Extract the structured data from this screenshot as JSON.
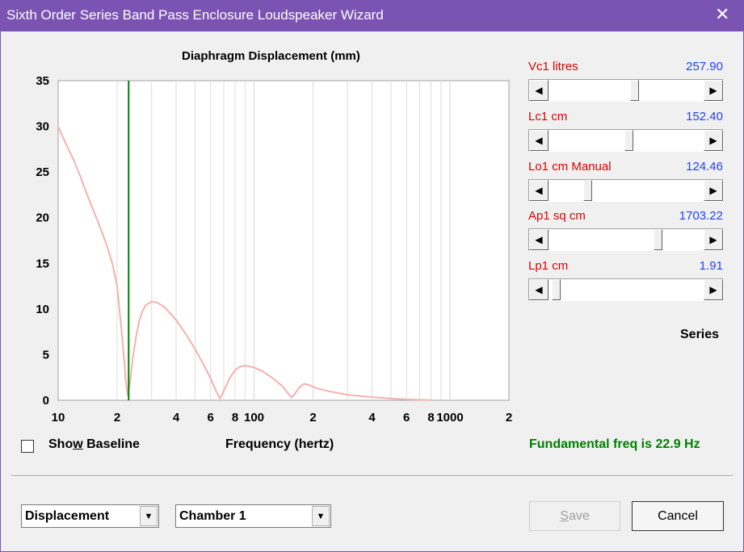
{
  "window": {
    "title": "Sixth Order Series Band Pass Enclosure Loudspeaker Wizard",
    "close_glyph": "✕"
  },
  "chart_data": {
    "type": "line",
    "title": "Diaphragm Displacement (mm)",
    "xlabel": "Frequency (hertz)",
    "ylabel": "",
    "x_scale": "log",
    "xlim": [
      10,
      2000
    ],
    "ylim": [
      0,
      35
    ],
    "y_ticks": [
      "0",
      "5",
      "10",
      "15",
      "20",
      "25",
      "30",
      "35"
    ],
    "x_tick_labels": [
      {
        "value": 10,
        "label": "10"
      },
      {
        "value": 20,
        "label": "2"
      },
      {
        "value": 40,
        "label": "4"
      },
      {
        "value": 60,
        "label": "6"
      },
      {
        "value": 80,
        "label": "8"
      },
      {
        "value": 100,
        "label": "100"
      },
      {
        "value": 200,
        "label": "2"
      },
      {
        "value": 400,
        "label": "4"
      },
      {
        "value": 600,
        "label": "6"
      },
      {
        "value": 800,
        "label": "8"
      },
      {
        "value": 1000,
        "label": "1000"
      },
      {
        "value": 2000,
        "label": "2"
      }
    ],
    "grid": true,
    "marker_line": {
      "x": 22.9,
      "color": "#008000"
    },
    "series": [
      {
        "color": "#f7b0b0",
        "points": [
          [
            10,
            30.0
          ],
          [
            11,
            28.0
          ],
          [
            12,
            26.3
          ],
          [
            13,
            24.5
          ],
          [
            14,
            22.6
          ],
          [
            15,
            21.0
          ],
          [
            16,
            19.5
          ],
          [
            17,
            18.0
          ],
          [
            18,
            16.5
          ],
          [
            19,
            14.8
          ],
          [
            20,
            12.5
          ],
          [
            21,
            8.0
          ],
          [
            21.8,
            4.0
          ],
          [
            22.2,
            1.8
          ],
          [
            22.7,
            0.5
          ],
          [
            23.3,
            2.0
          ],
          [
            24,
            4.5
          ],
          [
            25,
            7.0
          ],
          [
            26,
            8.8
          ],
          [
            27,
            9.8
          ],
          [
            28,
            10.4
          ],
          [
            30,
            10.8
          ],
          [
            32,
            10.7
          ],
          [
            35,
            10.2
          ],
          [
            40,
            8.8
          ],
          [
            45,
            7.2
          ],
          [
            50,
            5.6
          ],
          [
            55,
            4.0
          ],
          [
            60,
            2.4
          ],
          [
            64,
            1.0
          ],
          [
            67,
            0.2
          ],
          [
            70,
            1.0
          ],
          [
            75,
            2.4
          ],
          [
            80,
            3.3
          ],
          [
            85,
            3.7
          ],
          [
            90,
            3.8
          ],
          [
            100,
            3.6
          ],
          [
            110,
            3.2
          ],
          [
            125,
            2.4
          ],
          [
            140,
            1.5
          ],
          [
            150,
            0.7
          ],
          [
            155,
            0.3
          ],
          [
            160,
            0.6
          ],
          [
            170,
            1.4
          ],
          [
            180,
            1.8
          ],
          [
            190,
            1.7
          ],
          [
            210,
            1.3
          ],
          [
            240,
            1.0
          ],
          [
            300,
            0.6
          ],
          [
            400,
            0.35
          ],
          [
            500,
            0.2
          ],
          [
            600,
            0.1
          ],
          [
            700,
            0.05
          ],
          [
            800,
            0.02
          ]
        ]
      }
    ]
  },
  "params": [
    {
      "label": "Vc1  litres",
      "value": "257.90",
      "fraction": 0.56
    },
    {
      "label": "Lc1  cm",
      "value": "152.40",
      "fraction": 0.52
    },
    {
      "label": "Lo1  cm  Manual",
      "value": "124.46",
      "fraction": 0.24
    },
    {
      "label": "Ap1  sq cm",
      "value": "1703.22",
      "fraction": 0.72
    },
    {
      "label": "Lp1  cm",
      "value": "1.91",
      "fraction": 0.02
    }
  ],
  "series_label": "Series",
  "fundamental": "Fundamental freq is 22.9 Hz",
  "show_baseline": {
    "label_pre": "Sho",
    "label_accel": "w",
    "label_post": " Baseline",
    "checked": false
  },
  "combos": {
    "mode": "Displacement",
    "chamber": "Chamber 1"
  },
  "buttons": {
    "save_pre": "",
    "save_accel": "S",
    "save_post": "ave",
    "cancel": "Cancel"
  }
}
